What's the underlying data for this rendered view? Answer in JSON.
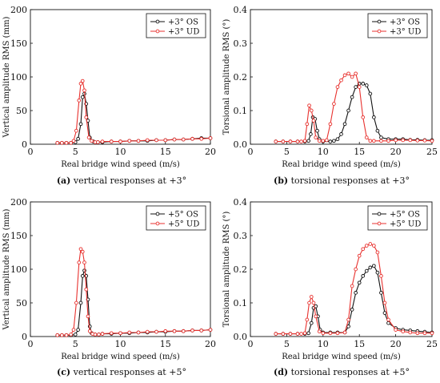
{
  "colors": {
    "os": "#111111",
    "ud": "#e8322f",
    "axis": "#111111"
  },
  "chart_data": [
    {
      "id": "a",
      "type": "line",
      "caption_bold": "(a)",
      "caption": " vertical responses at +3°",
      "xlabel": "Real bridge wind speed (m/s)",
      "ylabel": "Vertical amplitude RMS (mm)",
      "xlim": [
        0,
        20
      ],
      "ylim": [
        0,
        200
      ],
      "xticks": [
        "0",
        "5",
        "10",
        "15",
        "20"
      ],
      "xtick_values": [
        0,
        5,
        10,
        15,
        20
      ],
      "yticks": [
        "0",
        "50",
        "100",
        "150",
        "200"
      ],
      "ytick_values": [
        0,
        50,
        100,
        150,
        200
      ],
      "legend_position": "top-right",
      "series": [
        {
          "name": "+3° OS",
          "color": "#111111",
          "x": [
            3.0,
            3.5,
            4.0,
            4.5,
            5.0,
            5.3,
            5.6,
            5.8,
            6.0,
            6.2,
            6.4,
            6.6,
            7.0,
            7.5,
            8,
            9,
            10,
            11,
            12,
            13,
            14,
            15,
            16,
            17,
            18,
            19,
            20
          ],
          "y": [
            2,
            2,
            2,
            2,
            3,
            8,
            30,
            70,
            75,
            60,
            35,
            10,
            4,
            3,
            3,
            4,
            4,
            5,
            5,
            5,
            6,
            6,
            7,
            7,
            8,
            9,
            9
          ]
        },
        {
          "name": "+3° UD",
          "color": "#e8322f",
          "x": [
            3.0,
            3.5,
            4.0,
            4.5,
            4.8,
            5.1,
            5.4,
            5.6,
            5.8,
            6.0,
            6.2,
            6.5,
            6.8,
            7.2,
            7.5,
            8,
            9,
            10,
            11,
            12,
            13,
            14,
            15,
            16,
            17,
            18,
            19,
            20
          ],
          "y": [
            2,
            2,
            2,
            2,
            5,
            20,
            65,
            90,
            94,
            80,
            40,
            10,
            5,
            3,
            3,
            4,
            4,
            4,
            5,
            5,
            6,
            6,
            6,
            7,
            7,
            8,
            8,
            9
          ]
        }
      ]
    },
    {
      "id": "b",
      "type": "line",
      "caption_bold": "(b)",
      "caption": " torsional responses at +3°",
      "xlabel": "Real bridge wind speed (m/s)",
      "ylabel": "Torsional amplitude RMS (°)",
      "xlim": [
        0,
        25
      ],
      "ylim": [
        0,
        0.4
      ],
      "xticks": [
        "0",
        "5",
        "10",
        "15",
        "20",
        "25"
      ],
      "xtick_values": [
        0,
        5,
        10,
        15,
        20,
        25
      ],
      "yticks": [
        "0.0",
        "0.1",
        "0.2",
        "0.3",
        "0.4"
      ],
      "ytick_values": [
        0,
        0.1,
        0.2,
        0.3,
        0.4
      ],
      "legend_position": "top-right",
      "series": [
        {
          "name": "+3° OS",
          "color": "#111111",
          "x": [
            3.5,
            4.5,
            5.5,
            6.5,
            7.5,
            8.0,
            8.3,
            8.6,
            8.9,
            9.2,
            9.5,
            10,
            11,
            11.5,
            12,
            12.5,
            13,
            13.5,
            14,
            14.5,
            15,
            15.5,
            16,
            16.5,
            17,
            17.5,
            18,
            19,
            20,
            21,
            22,
            23,
            24,
            25
          ],
          "y": [
            0.008,
            0.008,
            0.008,
            0.008,
            0.008,
            0.01,
            0.03,
            0.08,
            0.075,
            0.04,
            0.015,
            0.008,
            0.008,
            0.01,
            0.015,
            0.03,
            0.06,
            0.1,
            0.14,
            0.17,
            0.18,
            0.18,
            0.175,
            0.15,
            0.08,
            0.04,
            0.02,
            0.015,
            0.015,
            0.015,
            0.013,
            0.013,
            0.012,
            0.012
          ]
        },
        {
          "name": "+3° UD",
          "color": "#e8322f",
          "x": [
            3.5,
            4.5,
            5.5,
            6.5,
            7.0,
            7.5,
            7.8,
            8.1,
            8.4,
            8.7,
            9.0,
            9.5,
            10,
            10.5,
            11,
            11.5,
            12,
            12.5,
            13,
            13.5,
            14,
            14.5,
            15,
            15.5,
            16,
            16.5,
            17,
            18,
            19,
            20,
            21,
            22,
            23,
            24,
            25
          ],
          "y": [
            0.008,
            0.008,
            0.008,
            0.008,
            0.008,
            0.01,
            0.06,
            0.115,
            0.1,
            0.07,
            0.02,
            0.01,
            0.01,
            0.012,
            0.06,
            0.12,
            0.17,
            0.19,
            0.205,
            0.21,
            0.2,
            0.21,
            0.17,
            0.08,
            0.02,
            0.01,
            0.01,
            0.01,
            0.01,
            0.012,
            0.012,
            0.012,
            0.011,
            0.011,
            0.01
          ]
        }
      ]
    },
    {
      "id": "c",
      "type": "line",
      "caption_bold": "(c)",
      "caption": " vertical responses at +5°",
      "xlabel": "Real bridge wind speed (m/s)",
      "ylabel": "Vertical amplitude RMS (mm)",
      "xlim": [
        0,
        20
      ],
      "ylim": [
        0,
        200
      ],
      "xticks": [
        "0",
        "5",
        "10",
        "15",
        "20"
      ],
      "xtick_values": [
        0,
        5,
        10,
        15,
        20
      ],
      "yticks": [
        "0",
        "50",
        "100",
        "150",
        "200"
      ],
      "ytick_values": [
        0,
        50,
        100,
        150,
        200
      ],
      "legend_position": "top-right",
      "series": [
        {
          "name": "+5° OS",
          "color": "#111111",
          "x": [
            3.0,
            3.5,
            4.0,
            4.5,
            5.0,
            5.3,
            5.6,
            5.8,
            6.0,
            6.2,
            6.4,
            6.6,
            6.8,
            7.2,
            7.6,
            8,
            9,
            10,
            11,
            12,
            13,
            14,
            15,
            16,
            17,
            18,
            19,
            20
          ],
          "y": [
            2,
            2,
            2,
            2,
            3,
            10,
            50,
            90,
            98,
            90,
            55,
            15,
            5,
            3,
            3,
            4,
            4,
            5,
            5,
            6,
            6,
            7,
            7,
            8,
            8,
            9,
            9,
            10
          ]
        },
        {
          "name": "+5° UD",
          "color": "#e8322f",
          "x": [
            3.0,
            3.5,
            4.0,
            4.5,
            4.8,
            5.1,
            5.4,
            5.6,
            5.8,
            6.0,
            6.2,
            6.4,
            6.6,
            6.9,
            7.2,
            7.6,
            8,
            9,
            10,
            11,
            12,
            13,
            14,
            15,
            16,
            17,
            18,
            19,
            20
          ],
          "y": [
            2,
            2,
            2,
            3,
            10,
            50,
            110,
            130,
            126,
            110,
            70,
            30,
            8,
            4,
            3,
            3,
            4,
            5,
            5,
            6,
            6,
            7,
            7,
            8,
            8,
            8,
            9,
            9,
            10
          ]
        }
      ]
    },
    {
      "id": "d",
      "type": "line",
      "caption_bold": "(d)",
      "caption": " torsional responses at +5°",
      "xlabel": "Real bridge wind speed (m/s)",
      "ylabel": "Torsional amplitude RMS (°)",
      "xlim": [
        0,
        25
      ],
      "ylim": [
        0,
        0.4
      ],
      "xticks": [
        "0",
        "5",
        "10",
        "15",
        "20",
        "25"
      ],
      "xtick_values": [
        0,
        5,
        10,
        15,
        20,
        25
      ],
      "yticks": [
        "0.0",
        "0.1",
        "0.2",
        "0.3",
        "0.4"
      ],
      "ytick_values": [
        0,
        0.1,
        0.2,
        0.3,
        0.4
      ],
      "legend_position": "top-right",
      "series": [
        {
          "name": "+5° OS",
          "color": "#111111",
          "x": [
            3.5,
            4.5,
            5.5,
            6.5,
            7.5,
            8.0,
            8.4,
            8.7,
            9.0,
            9.3,
            9.6,
            10,
            11,
            12,
            13,
            13.5,
            14,
            14.5,
            15,
            15.5,
            16,
            16.5,
            17,
            17.5,
            18,
            18.5,
            19,
            20,
            21,
            22,
            23,
            24,
            25
          ],
          "y": [
            0.008,
            0.008,
            0.008,
            0.008,
            0.008,
            0.01,
            0.04,
            0.085,
            0.09,
            0.06,
            0.02,
            0.012,
            0.012,
            0.012,
            0.012,
            0.03,
            0.08,
            0.13,
            0.16,
            0.18,
            0.195,
            0.205,
            0.21,
            0.19,
            0.13,
            0.07,
            0.04,
            0.025,
            0.02,
            0.018,
            0.016,
            0.014,
            0.012
          ]
        },
        {
          "name": "+5° UD",
          "color": "#e8322f",
          "x": [
            3.5,
            4.5,
            5.5,
            6.5,
            7.0,
            7.5,
            7.8,
            8.1,
            8.4,
            8.7,
            9.0,
            9.5,
            10,
            11,
            12,
            13,
            13.5,
            14,
            14.5,
            15,
            15.5,
            16,
            16.5,
            17,
            17.5,
            18,
            18.5,
            19,
            20,
            21,
            22,
            23,
            24,
            25
          ],
          "y": [
            0.008,
            0.008,
            0.008,
            0.008,
            0.008,
            0.01,
            0.05,
            0.1,
            0.118,
            0.1,
            0.06,
            0.015,
            0.01,
            0.01,
            0.01,
            0.012,
            0.05,
            0.15,
            0.2,
            0.24,
            0.26,
            0.27,
            0.275,
            0.27,
            0.25,
            0.18,
            0.1,
            0.05,
            0.02,
            0.015,
            0.012,
            0.01,
            0.01,
            0.01
          ]
        }
      ]
    }
  ]
}
